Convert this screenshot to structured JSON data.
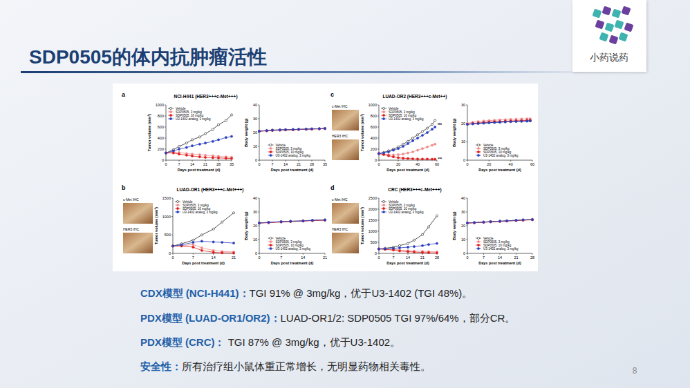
{
  "slide": {
    "title": "SDP0505的体内抗肿瘤活性",
    "logo_text": "小药说药",
    "page_number": "8",
    "bullets": [
      {
        "label": "CDX模型 (NCI-H441)：",
        "text": "TGI 91% @ 3mg/kg，优于U3-1402 (TGI 48%)。"
      },
      {
        "label": "PDX模型 (LUAD-OR1/OR2)：",
        "text": "LUAD-OR1/2: SDP0505 TGI 97%/64%，部分CR。"
      },
      {
        "label": "PDX模型 (CRC)：",
        "text": " TGI 87% @ 3mg/kg，优于U3-1402。"
      },
      {
        "label": "安全性：",
        "text": "所有治疗组小鼠体重正常增长，无明显药物相关毒性。"
      }
    ]
  },
  "chart_data": [
    {
      "type": "line",
      "panel_label": "a",
      "title": "NCI-H441 (HER3+++c-Met+++)",
      "x_label": "Days post treatment (d)",
      "y_label": "Tumor volume (mm³)",
      "x": [
        0,
        4,
        7,
        11,
        14,
        18,
        21,
        25,
        28,
        32,
        35
      ],
      "xlim": [
        0,
        35
      ],
      "xticks": [
        0,
        7,
        14,
        21,
        28,
        35
      ],
      "ylim": [
        0,
        1000
      ],
      "yticks": [
        0,
        200,
        400,
        600,
        800,
        1000
      ],
      "legend": "upper-left",
      "series": [
        {
          "name": "Vehicle",
          "color": "#222222",
          "marker": "open-circle",
          "values": [
            130,
            190,
            250,
            310,
            370,
            420,
            480,
            560,
            640,
            720,
            820
          ]
        },
        {
          "name": "SDP0505, 3 mg/kg",
          "color": "#f08a8a",
          "marker": "circle",
          "values": [
            130,
            150,
            140,
            120,
            110,
            100,
            90,
            80,
            70,
            60,
            55
          ]
        },
        {
          "name": "SDP0505, 10 mg/kg",
          "color": "#e01b1b",
          "marker": "circle",
          "values": [
            130,
            130,
            110,
            90,
            75,
            60,
            50,
            45,
            40,
            35,
            30
          ]
        },
        {
          "name": "U3-1402 analog, 3 mg/kg",
          "color": "#2a3fc0",
          "marker": "circle",
          "values": [
            130,
            170,
            200,
            230,
            260,
            290,
            310,
            340,
            370,
            410,
            430
          ]
        }
      ]
    },
    {
      "type": "line",
      "x_label": "Days post treatment (d)",
      "y_label": "Body weight (g)",
      "x": [
        0,
        4,
        7,
        11,
        14,
        18,
        21,
        25,
        28,
        32,
        35
      ],
      "xlim": [
        0,
        35
      ],
      "xticks": [
        0,
        7,
        14,
        21,
        28,
        35
      ],
      "ylim": [
        0,
        40
      ],
      "yticks": [
        0,
        10,
        20,
        30,
        40
      ],
      "legend": "lower-center",
      "series": [
        {
          "name": "Vehicle",
          "color": "#222222",
          "marker": "open-circle",
          "values": [
            21,
            21.5,
            21.8,
            22,
            22,
            22.2,
            22.3,
            22.5,
            22.6,
            22.8,
            23
          ]
        },
        {
          "name": "SDP0505, 3 mg/kg",
          "color": "#f08a8a",
          "marker": "circle",
          "values": [
            21,
            21.3,
            21.6,
            21.8,
            22,
            22.1,
            22.3,
            22.4,
            22.6,
            22.7,
            22.9
          ]
        },
        {
          "name": "SDP0505, 10 mg/kg",
          "color": "#e01b1b",
          "marker": "circle",
          "values": [
            21,
            21.2,
            21.5,
            21.7,
            21.9,
            22,
            22.2,
            22.4,
            22.5,
            22.7,
            22.8
          ]
        },
        {
          "name": "U3-1402 analog, 3 mg/kg",
          "color": "#2a3fc0",
          "marker": "circle",
          "values": [
            21,
            21.4,
            21.7,
            21.9,
            22.1,
            22.2,
            22.4,
            22.5,
            22.7,
            22.8,
            23
          ]
        }
      ]
    },
    {
      "type": "line",
      "panel_label": "b",
      "title": "LUAD-OR1 (HER3+++c-Met+++)",
      "ihc_labels": [
        "c-Met IHC",
        "HER3 IHC"
      ],
      "x_label": "Days post treatment (d)",
      "y_label": "Tumor volume (mm³)",
      "x": [
        0,
        3,
        7,
        10,
        14,
        17,
        21
      ],
      "xlim": [
        0,
        21
      ],
      "xticks": [
        0,
        7,
        14,
        21
      ],
      "ylim": [
        0,
        1500
      ],
      "yticks": [
        0,
        500,
        1000,
        1500
      ],
      "legend": "upper-left",
      "series": [
        {
          "name": "Vehicle",
          "color": "#222222",
          "marker": "open-circle",
          "values": [
            200,
            260,
            360,
            500,
            660,
            850,
            1100
          ]
        },
        {
          "name": "SDP0505, 3 mg/kg",
          "color": "#f08a8a",
          "marker": "circle",
          "values": [
            200,
            210,
            240,
            150,
            80,
            50,
            40
          ]
        },
        {
          "name": "SDP0505, 10 mg/kg",
          "color": "#e01b1b",
          "marker": "circle",
          "values": [
            200,
            200,
            170,
            80,
            30,
            15,
            10
          ]
        },
        {
          "name": "U3-1402 analog, 3 mg/kg",
          "color": "#2a3fc0",
          "marker": "circle",
          "values": [
            200,
            230,
            300,
            330,
            310,
            300,
            280
          ]
        }
      ]
    },
    {
      "type": "line",
      "x_label": "Days post treatment (d)",
      "y_label": "Body weight (g)",
      "x": [
        0,
        3,
        7,
        10,
        14,
        17,
        21
      ],
      "xlim": [
        0,
        21
      ],
      "xticks": [
        0,
        7,
        14,
        21
      ],
      "ylim": [
        0,
        40
      ],
      "yticks": [
        0,
        10,
        20,
        30,
        40
      ],
      "legend": "lower-center",
      "series": [
        {
          "name": "Vehicle",
          "color": "#222222",
          "marker": "open-circle",
          "values": [
            22,
            22.5,
            23,
            23.3,
            23.6,
            24,
            24.3
          ]
        },
        {
          "name": "SDP0505, 3 mg/kg",
          "color": "#f08a8a",
          "marker": "circle",
          "values": [
            22,
            22.3,
            22.8,
            23.2,
            23.5,
            23.8,
            24
          ]
        },
        {
          "name": "SDP0505, 10 mg/kg",
          "color": "#e01b1b",
          "marker": "circle",
          "values": [
            22,
            22.2,
            22.7,
            23,
            23.4,
            23.7,
            24
          ]
        },
        {
          "name": "U3-1402 analog, 3 mg/kg",
          "color": "#2a3fc0",
          "marker": "circle",
          "values": [
            22,
            22.4,
            22.9,
            23.2,
            23.5,
            23.9,
            24.2
          ]
        }
      ]
    },
    {
      "type": "line",
      "panel_label": "c",
      "title": "LUAD-OR2 (HER3+++c-Met++)",
      "ihc_labels": [
        "c-Met IHC",
        "HER3 IHC"
      ],
      "x_label": "Days post treatment (d)",
      "y_label": "Tumor volume (mm³)",
      "x": [
        0,
        5,
        10,
        15,
        20,
        25,
        30,
        35,
        40,
        45,
        50,
        55,
        58
      ],
      "xlim": [
        0,
        60
      ],
      "xticks": [
        0,
        20,
        40,
        60
      ],
      "ylim": [
        0,
        1000
      ],
      "yticks": [
        0,
        200,
        400,
        600,
        800,
        1000
      ],
      "legend": "upper-left",
      "annotations": [
        {
          "text": "ns",
          "x": 58,
          "y": 660
        },
        {
          "text": "***",
          "x": 58,
          "y": 20
        }
      ],
      "series": [
        {
          "name": "Vehicle",
          "color": "#222222",
          "marker": "open-circle",
          "values": [
            120,
            140,
            170,
            200,
            240,
            290,
            340,
            400,
            460,
            520,
            580,
            650,
            720
          ]
        },
        {
          "name": "SDP0505, 3 mg/kg",
          "color": "#f08a8a",
          "marker": "circle",
          "values": [
            120,
            110,
            100,
            95,
            100,
            110,
            130,
            150,
            180,
            210,
            240,
            270,
            290
          ]
        },
        {
          "name": "SDP0505, 10 mg/kg",
          "color": "#e01b1b",
          "marker": "circle",
          "values": [
            120,
            100,
            80,
            60,
            45,
            35,
            30,
            25,
            22,
            20,
            20,
            18,
            18
          ]
        },
        {
          "name": "U3-1402 analog, 3 mg/kg",
          "color": "#2a3fc0",
          "marker": "circle",
          "values": [
            120,
            130,
            150,
            180,
            210,
            250,
            300,
            350,
            400,
            450,
            500,
            560,
            600
          ]
        }
      ]
    },
    {
      "type": "line",
      "x_label": "Days post treatment (d)",
      "y_label": "Body weight (g)",
      "x": [
        0,
        5,
        10,
        15,
        20,
        25,
        30,
        35,
        40,
        45,
        50,
        55,
        58
      ],
      "xlim": [
        0,
        60
      ],
      "xticks": [
        0,
        20,
        40,
        60
      ],
      "ylim": [
        0,
        30
      ],
      "yticks": [
        0,
        10,
        20,
        30
      ],
      "legend": "lower-center",
      "series": [
        {
          "name": "Vehicle",
          "color": "#222222",
          "marker": "open-circle",
          "values": [
            19.5,
            19.8,
            20,
            20.2,
            20.4,
            20.5,
            20.7,
            20.8,
            21,
            21.1,
            21.2,
            21.3,
            21.4
          ]
        },
        {
          "name": "SDP0505, 3 mg/kg",
          "color": "#f08a8a",
          "marker": "circle",
          "values": [
            20,
            20.6,
            21,
            21.3,
            21.5,
            21.7,
            21.9,
            22,
            22.2,
            22.3,
            22.4,
            22.5,
            22.5
          ]
        },
        {
          "name": "SDP0505, 10 mg/kg",
          "color": "#e01b1b",
          "marker": "circle",
          "values": [
            19.5,
            19.9,
            20.2,
            20.5,
            20.7,
            20.9,
            21,
            21.2,
            21.3,
            21.4,
            21.5,
            21.6,
            21.7
          ]
        },
        {
          "name": "U3-1402 analog, 3 mg/kg",
          "color": "#2a3fc0",
          "marker": "circle",
          "values": [
            19.5,
            19.7,
            19.9,
            20.1,
            20.3,
            20.5,
            20.6,
            20.8,
            20.9,
            21,
            21.1,
            21.2,
            21.3
          ]
        }
      ]
    },
    {
      "type": "line",
      "panel_label": "d",
      "title": "CRC (HER3+++c-Met+++)",
      "ihc_labels": [
        "c-Met IHC",
        "HER3 IHC"
      ],
      "x_label": "Days post treatment (d)",
      "y_label": "Tumor volume (mm³)",
      "x": [
        0,
        3,
        7,
        10,
        14,
        17,
        21,
        24,
        28
      ],
      "xlim": [
        0,
        28
      ],
      "xticks": [
        0,
        7,
        14,
        21,
        28
      ],
      "ylim": [
        0,
        2500
      ],
      "yticks": [
        0,
        500,
        1000,
        1500,
        2000,
        2500
      ],
      "legend": "upper-left",
      "series": [
        {
          "name": "Vehicle",
          "color": "#222222",
          "marker": "open-circle",
          "values": [
            200,
            230,
            280,
            350,
            450,
            600,
            850,
            1200,
            1700
          ]
        },
        {
          "name": "SDP0505, 3 mg/kg",
          "color": "#f08a8a",
          "marker": "circle",
          "values": [
            200,
            190,
            180,
            150,
            120,
            100,
            90,
            80,
            70
          ]
        },
        {
          "name": "SDP0505, 10 mg/kg",
          "color": "#e01b1b",
          "marker": "circle",
          "values": [
            200,
            180,
            150,
            110,
            80,
            60,
            40,
            30,
            20
          ]
        },
        {
          "name": "U3-1402 analog, 3 mg/kg",
          "color": "#2a3fc0",
          "marker": "circle",
          "values": [
            200,
            210,
            230,
            250,
            280,
            310,
            350,
            400,
            450
          ]
        }
      ]
    },
    {
      "type": "line",
      "x_label": "Days post treatment (d)",
      "y_label": "Body weight (g)",
      "x": [
        0,
        3,
        7,
        10,
        14,
        17,
        21,
        24,
        28
      ],
      "xlim": [
        0,
        28
      ],
      "xticks": [
        0,
        7,
        14,
        21,
        28
      ],
      "ylim": [
        0,
        40
      ],
      "yticks": [
        0,
        10,
        20,
        30,
        40
      ],
      "legend": "lower-center",
      "series": [
        {
          "name": "Vehicle",
          "color": "#222222",
          "marker": "open-circle",
          "values": [
            22,
            22.3,
            22.7,
            23,
            23.3,
            23.6,
            24,
            24.3,
            24.6
          ]
        },
        {
          "name": "SDP0505, 3 mg/kg",
          "color": "#f08a8a",
          "marker": "circle",
          "values": [
            22,
            22.2,
            22.6,
            22.9,
            23.2,
            23.5,
            23.8,
            24.1,
            24.4
          ]
        },
        {
          "name": "SDP0505, 10 mg/kg",
          "color": "#e01b1b",
          "marker": "circle",
          "values": [
            22,
            22.1,
            22.5,
            22.8,
            23.1,
            23.4,
            23.7,
            24,
            24.3
          ]
        },
        {
          "name": "U3-1402 analog, 3 mg/kg",
          "color": "#2a3fc0",
          "marker": "circle",
          "values": [
            22,
            22.3,
            22.6,
            23,
            23.3,
            23.5,
            23.9,
            24.2,
            24.5
          ]
        }
      ]
    }
  ]
}
